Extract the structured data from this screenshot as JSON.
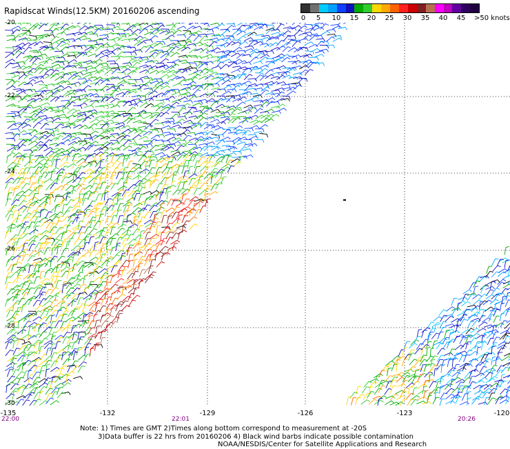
{
  "title": "Rapidscat Winds(12.5KM) 20160206 ascending",
  "legend": {
    "colors": [
      "#303030",
      "#707070",
      "#00ccff",
      "#00a0ff",
      "#1040ff",
      "#1010c0",
      "#00aa00",
      "#30cc30",
      "#ffd700",
      "#ffaa00",
      "#ff6000",
      "#ff2020",
      "#cc0000",
      "#802020",
      "#b87050",
      "#ff00ff",
      "#c000c0",
      "#6000a0",
      "#300060",
      "#200040"
    ],
    "labels": [
      "0",
      "5",
      "10",
      "15",
      "20",
      "25",
      "30",
      "35",
      "40",
      "45"
    ],
    "unit": ">50 knots"
  },
  "map": {
    "lat_labels": [
      "-20",
      "-22",
      "-24",
      "-26",
      "-28",
      "-30"
    ],
    "lon_labels": [
      "-135",
      "-132",
      "-129",
      "-126",
      "-123",
      "-120"
    ],
    "time_labels": [
      "22:00",
      "22:01",
      "20:26"
    ]
  },
  "notes": {
    "line1": "Note: 1) Times are GMT 2)Times along bottom correspond to measurement at -20S",
    "line2": "3)Data buffer is 22 hrs from 20160206 4) Black wind barbs indicate possible contamination",
    "line3": "NOAA/NESDIS/Center for Satellite Applications and Research"
  }
}
